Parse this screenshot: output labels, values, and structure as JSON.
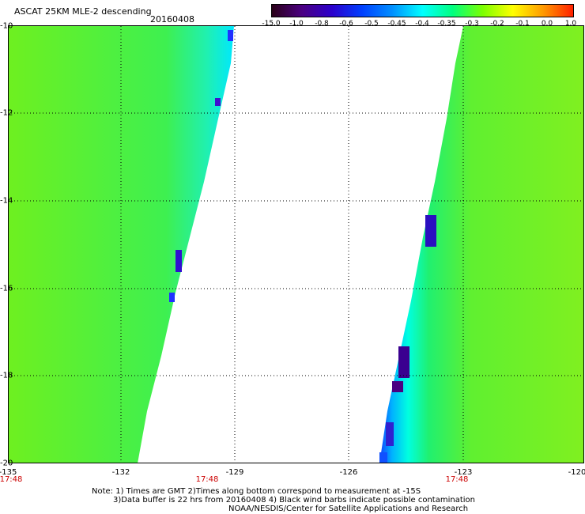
{
  "header": {
    "title": "ASCAT 25KM MLE-2 descending",
    "date": "20160408"
  },
  "colorbar": {
    "labels": [
      "-15.0",
      "-1.0",
      "-0.8",
      "-0.6",
      "-0.5",
      "-0.45",
      "-0.4",
      "-0.35",
      "-0.3",
      "-0.2",
      "-0.1",
      "0.0",
      "1.0"
    ],
    "colors": [
      "#2a0018",
      "#4b0082",
      "#2b00cc",
      "#0040ff",
      "#0090ff",
      "#00ffff",
      "#00ff7f",
      "#7cff00",
      "#ffff00",
      "#ff9a00",
      "#ff2000"
    ]
  },
  "axes": {
    "x_ticks": [
      "-135",
      "-132",
      "-129",
      "-126",
      "-123",
      "-120"
    ],
    "y_ticks": [
      "-10",
      "-12",
      "-14",
      "-16",
      "-18",
      "-20"
    ],
    "time_labels": [
      "17:48",
      "17:48",
      "17:48"
    ]
  },
  "notes": {
    "line1": "Note: 1) Times are GMT 2)Times along bottom correspond to measurement at -15S",
    "line2": "3)Data buffer is 22 hrs from 20160408 4) Black wind barbs indicate possible contamination",
    "line3": "NOAA/NESDIS/Center for Satellite Applications and Research"
  }
}
